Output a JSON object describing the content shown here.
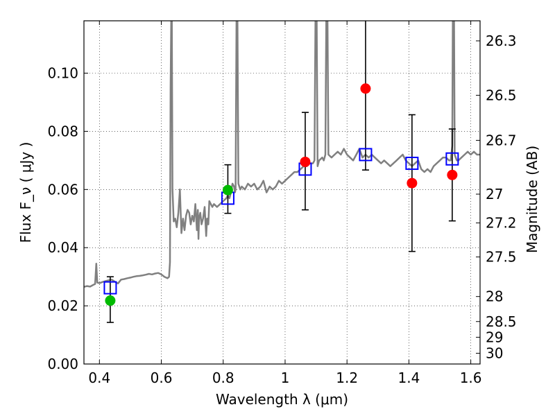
{
  "chart_data": {
    "type": "line",
    "xlabel": "Wavelength  λ (μm)",
    "ylabel_left": "Flux  F_ν  ( μJy )",
    "ylabel_right": "Magnitude (AB)",
    "xlim": [
      0.35,
      1.63
    ],
    "ylim": [
      0.0,
      0.118
    ],
    "grid": true,
    "x_ticks": [
      0.4,
      0.6,
      0.8,
      1.0,
      1.2,
      1.4,
      1.6
    ],
    "x_tick_labels": [
      "0.4",
      "0.6",
      "0.8",
      "1",
      "1.2",
      "1.4",
      "1.6"
    ],
    "y_ticks": [
      0.0,
      0.02,
      0.04,
      0.06,
      0.08,
      0.1
    ],
    "y_tick_labels": [
      "0.00",
      "0.02",
      "0.04",
      "0.06",
      "0.08",
      "0.10"
    ],
    "right_ticks": [
      {
        "label": "26.3",
        "flux": 0.1111
      },
      {
        "label": "26.5",
        "flux": 0.0924
      },
      {
        "label": "26.7",
        "flux": 0.0769
      },
      {
        "label": "27",
        "flux": 0.0584
      },
      {
        "label": "27.2",
        "flux": 0.0485
      },
      {
        "label": "27.5",
        "flux": 0.0368
      },
      {
        "label": "28",
        "flux": 0.0232
      },
      {
        "label": "28.5",
        "flux": 0.0146
      },
      {
        "label": "29",
        "flux": 0.0092
      },
      {
        "label": "30",
        "flux": 0.0037
      }
    ],
    "series": [
      {
        "kind": "spectrum",
        "color": "#808080",
        "points": [
          [
            0.35,
            0.0265
          ],
          [
            0.36,
            0.0268
          ],
          [
            0.37,
            0.0266
          ],
          [
            0.38,
            0.0272
          ],
          [
            0.386,
            0.0275
          ],
          [
            0.39,
            0.0345
          ],
          [
            0.393,
            0.028
          ],
          [
            0.4,
            0.0278
          ],
          [
            0.41,
            0.0282
          ],
          [
            0.42,
            0.0285
          ],
          [
            0.43,
            0.0288
          ],
          [
            0.44,
            0.029
          ],
          [
            0.45,
            0.0283
          ],
          [
            0.46,
            0.0277
          ],
          [
            0.47,
            0.029
          ],
          [
            0.48,
            0.0292
          ],
          [
            0.49,
            0.0295
          ],
          [
            0.5,
            0.0297
          ],
          [
            0.51,
            0.03
          ],
          [
            0.52,
            0.0302
          ],
          [
            0.53,
            0.0303
          ],
          [
            0.54,
            0.0305
          ],
          [
            0.55,
            0.0307
          ],
          [
            0.56,
            0.031
          ],
          [
            0.57,
            0.0308
          ],
          [
            0.58,
            0.0311
          ],
          [
            0.59,
            0.0313
          ],
          [
            0.6,
            0.0308
          ],
          [
            0.61,
            0.03
          ],
          [
            0.62,
            0.0295
          ],
          [
            0.625,
            0.03
          ],
          [
            0.628,
            0.035
          ],
          [
            0.63,
            0.095
          ],
          [
            0.632,
            0.118
          ],
          [
            0.634,
            0.118
          ],
          [
            0.636,
            0.06
          ],
          [
            0.64,
            0.049
          ],
          [
            0.645,
            0.05
          ],
          [
            0.65,
            0.047
          ],
          [
            0.655,
            0.052
          ],
          [
            0.66,
            0.06
          ],
          [
            0.665,
            0.045
          ],
          [
            0.67,
            0.05
          ],
          [
            0.675,
            0.046
          ],
          [
            0.68,
            0.051
          ],
          [
            0.685,
            0.053
          ],
          [
            0.69,
            0.052
          ],
          [
            0.695,
            0.048
          ],
          [
            0.7,
            0.051
          ],
          [
            0.705,
            0.049
          ],
          [
            0.71,
            0.055
          ],
          [
            0.715,
            0.046
          ],
          [
            0.718,
            0.053
          ],
          [
            0.72,
            0.043
          ],
          [
            0.722,
            0.05
          ],
          [
            0.726,
            0.052
          ],
          [
            0.73,
            0.048
          ],
          [
            0.735,
            0.05
          ],
          [
            0.74,
            0.054
          ],
          [
            0.745,
            0.044
          ],
          [
            0.748,
            0.05
          ],
          [
            0.752,
            0.048
          ],
          [
            0.755,
            0.056
          ],
          [
            0.76,
            0.055
          ],
          [
            0.765,
            0.054
          ],
          [
            0.77,
            0.055
          ],
          [
            0.78,
            0.054
          ],
          [
            0.79,
            0.055
          ],
          [
            0.8,
            0.056
          ],
          [
            0.81,
            0.057
          ],
          [
            0.815,
            0.058
          ],
          [
            0.82,
            0.057
          ],
          [
            0.825,
            0.059
          ],
          [
            0.83,
            0.062
          ],
          [
            0.835,
            0.061
          ],
          [
            0.838,
            0.059
          ],
          [
            0.84,
            0.06
          ],
          [
            0.843,
            0.118
          ],
          [
            0.846,
            0.118
          ],
          [
            0.849,
            0.062
          ],
          [
            0.855,
            0.06
          ],
          [
            0.86,
            0.061
          ],
          [
            0.87,
            0.06
          ],
          [
            0.88,
            0.062
          ],
          [
            0.89,
            0.061
          ],
          [
            0.9,
            0.062
          ],
          [
            0.91,
            0.06
          ],
          [
            0.92,
            0.061
          ],
          [
            0.93,
            0.063
          ],
          [
            0.94,
            0.059
          ],
          [
            0.95,
            0.061
          ],
          [
            0.96,
            0.06
          ],
          [
            0.97,
            0.061
          ],
          [
            0.98,
            0.063
          ],
          [
            0.99,
            0.062
          ],
          [
            1.0,
            0.063
          ],
          [
            1.01,
            0.064
          ],
          [
            1.02,
            0.065
          ],
          [
            1.03,
            0.066
          ],
          [
            1.04,
            0.066
          ],
          [
            1.05,
            0.067
          ],
          [
            1.06,
            0.068
          ],
          [
            1.07,
            0.068
          ],
          [
            1.08,
            0.069
          ],
          [
            1.09,
            0.069
          ],
          [
            1.095,
            0.07
          ],
          [
            1.098,
            0.118
          ],
          [
            1.102,
            0.118
          ],
          [
            1.105,
            0.068
          ],
          [
            1.11,
            0.07
          ],
          [
            1.12,
            0.071
          ],
          [
            1.125,
            0.07
          ],
          [
            1.13,
            0.072
          ],
          [
            1.133,
            0.118
          ],
          [
            1.137,
            0.118
          ],
          [
            1.14,
            0.072
          ],
          [
            1.15,
            0.071
          ],
          [
            1.16,
            0.072
          ],
          [
            1.17,
            0.073
          ],
          [
            1.18,
            0.072
          ],
          [
            1.19,
            0.074
          ],
          [
            1.2,
            0.072
          ],
          [
            1.21,
            0.071
          ],
          [
            1.22,
            0.07
          ],
          [
            1.23,
            0.072
          ],
          [
            1.24,
            0.074
          ],
          [
            1.25,
            0.071
          ],
          [
            1.26,
            0.072
          ],
          [
            1.27,
            0.071
          ],
          [
            1.28,
            0.072
          ],
          [
            1.29,
            0.071
          ],
          [
            1.3,
            0.07
          ],
          [
            1.31,
            0.069
          ],
          [
            1.32,
            0.07
          ],
          [
            1.33,
            0.069
          ],
          [
            1.34,
            0.068
          ],
          [
            1.35,
            0.069
          ],
          [
            1.36,
            0.07
          ],
          [
            1.37,
            0.071
          ],
          [
            1.38,
            0.072
          ],
          [
            1.39,
            0.07
          ],
          [
            1.4,
            0.069
          ],
          [
            1.41,
            0.068
          ],
          [
            1.42,
            0.069
          ],
          [
            1.43,
            0.07
          ],
          [
            1.44,
            0.067
          ],
          [
            1.45,
            0.066
          ],
          [
            1.46,
            0.067
          ],
          [
            1.47,
            0.066
          ],
          [
            1.48,
            0.068
          ],
          [
            1.49,
            0.069
          ],
          [
            1.5,
            0.07
          ],
          [
            1.51,
            0.071
          ],
          [
            1.52,
            0.071
          ],
          [
            1.53,
            0.07
          ],
          [
            1.535,
            0.07
          ],
          [
            1.54,
            0.075
          ],
          [
            1.542,
            0.118
          ],
          [
            1.546,
            0.118
          ],
          [
            1.548,
            0.072
          ],
          [
            1.555,
            0.07
          ],
          [
            1.56,
            0.07
          ],
          [
            1.57,
            0.071
          ],
          [
            1.58,
            0.072
          ],
          [
            1.59,
            0.073
          ],
          [
            1.6,
            0.072
          ],
          [
            1.61,
            0.073
          ],
          [
            1.62,
            0.072
          ],
          [
            1.63,
            0.072
          ]
        ]
      },
      {
        "kind": "model_photometry",
        "marker": "open-square",
        "color": "#0000ff",
        "points": [
          [
            0.435,
            0.0262
          ],
          [
            0.815,
            0.057
          ],
          [
            1.065,
            0.067
          ],
          [
            1.26,
            0.072
          ],
          [
            1.41,
            0.069
          ],
          [
            1.54,
            0.0705
          ]
        ]
      },
      {
        "kind": "observed_green",
        "marker": "filled-circle",
        "color": "#00bb00",
        "points": [
          {
            "x": 0.435,
            "y": 0.0218,
            "err_low": 0.0075,
            "err_high": 0.0082
          },
          {
            "x": 0.815,
            "y": 0.0598,
            "err_low": 0.008,
            "err_high": 0.0087
          }
        ]
      },
      {
        "kind": "observed_red",
        "marker": "filled-circle",
        "color": "#ff0000",
        "points": [
          {
            "x": 1.065,
            "y": 0.0695,
            "err_low": 0.0165,
            "err_high": 0.017
          },
          {
            "x": 1.26,
            "y": 0.0947,
            "err_low": 0.028,
            "err_high": 0.026
          },
          {
            "x": 1.41,
            "y": 0.0622,
            "err_low": 0.0235,
            "err_high": 0.0235
          },
          {
            "x": 1.54,
            "y": 0.065,
            "err_low": 0.0158,
            "err_high": 0.0158
          }
        ]
      }
    ]
  }
}
